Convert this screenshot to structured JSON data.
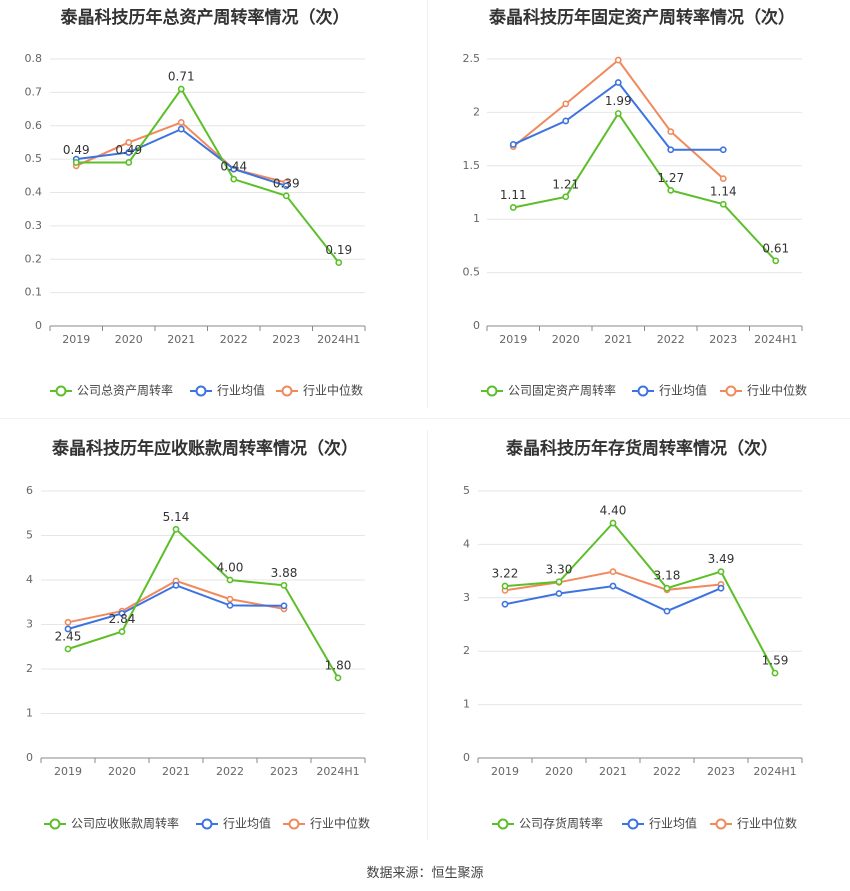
{
  "footer": "数据来源：恒生聚源",
  "colors": {
    "company": "#5cbf2a",
    "avg": "#3d73e0",
    "median": "#f08a5d"
  },
  "chart_data": [
    {
      "type": "line",
      "title": "泰晶科技历年总资产周转率情况（次）",
      "categories": [
        "2019",
        "2020",
        "2021",
        "2022",
        "2023",
        "2024H1"
      ],
      "ylim": [
        0,
        0.8
      ],
      "yticks": [
        "0",
        "0.1",
        "0.2",
        "0.3",
        "0.4",
        "0.5",
        "0.6",
        "0.7",
        "0.8"
      ],
      "series": [
        {
          "name": "公司总资产周转率",
          "values": [
            0.49,
            0.49,
            0.71,
            0.44,
            0.39,
            0.19
          ],
          "labels": [
            "0.49",
            "0.49",
            "0.71",
            "0.44",
            "0.39",
            "0.19"
          ]
        },
        {
          "name": "行业均值",
          "values": [
            0.5,
            0.52,
            0.59,
            0.47,
            0.42,
            null
          ]
        },
        {
          "name": "行业中位数",
          "values": [
            0.48,
            0.55,
            0.61,
            0.47,
            0.43,
            null
          ]
        }
      ],
      "grid": true,
      "legend": "bottom"
    },
    {
      "type": "line",
      "title": "泰晶科技历年固定资产周转率情况（次）",
      "categories": [
        "2019",
        "2020",
        "2021",
        "2022",
        "2023",
        "2024H1"
      ],
      "ylim": [
        0,
        2.5
      ],
      "yticks": [
        "0",
        "0.5",
        "1",
        "1.5",
        "2",
        "2.5"
      ],
      "series": [
        {
          "name": "公司固定资产周转率",
          "values": [
            1.11,
            1.21,
            1.99,
            1.27,
            1.14,
            0.61
          ],
          "labels": [
            "1.11",
            "1.21",
            "1.99",
            "1.27",
            "1.14",
            "0.61"
          ]
        },
        {
          "name": "行业均值",
          "values": [
            1.7,
            1.92,
            2.28,
            1.65,
            1.65,
            null
          ]
        },
        {
          "name": "行业中位数",
          "values": [
            1.68,
            2.08,
            2.49,
            1.82,
            1.38,
            null
          ]
        }
      ],
      "grid": true,
      "legend": "bottom"
    },
    {
      "type": "line",
      "title": "泰晶科技历年应收账款周转率情况（次）",
      "categories": [
        "2019",
        "2020",
        "2021",
        "2022",
        "2023",
        "2024H1"
      ],
      "ylim": [
        0,
        6
      ],
      "yticks": [
        "0",
        "1",
        "2",
        "3",
        "4",
        "5",
        "6"
      ],
      "series": [
        {
          "name": "公司应收账款周转率",
          "values": [
            2.45,
            2.84,
            5.14,
            4.0,
            3.88,
            1.8
          ],
          "labels": [
            "2.45",
            "2.84",
            "5.14",
            "4.00",
            "3.88",
            "1.80"
          ]
        },
        {
          "name": "行业均值",
          "values": [
            2.9,
            3.25,
            3.88,
            3.43,
            3.42,
            null
          ]
        },
        {
          "name": "行业中位数",
          "values": [
            3.05,
            3.3,
            3.98,
            3.57,
            3.35,
            null
          ]
        }
      ],
      "grid": true,
      "legend": "bottom"
    },
    {
      "type": "line",
      "title": "泰晶科技历年存货周转率情况（次）",
      "categories": [
        "2019",
        "2020",
        "2021",
        "2022",
        "2023",
        "2024H1"
      ],
      "ylim": [
        0,
        5
      ],
      "yticks": [
        "0",
        "1",
        "2",
        "3",
        "4",
        "5"
      ],
      "series": [
        {
          "name": "公司存货周转率",
          "values": [
            3.22,
            3.3,
            4.4,
            3.18,
            3.49,
            1.59
          ],
          "labels": [
            "3.22",
            "3.30",
            "4.40",
            "3.18",
            "3.49",
            "1.59"
          ]
        },
        {
          "name": "行业均值",
          "values": [
            2.88,
            3.08,
            3.22,
            2.75,
            3.18,
            null
          ]
        },
        {
          "name": "行业中位数",
          "values": [
            3.14,
            3.29,
            3.49,
            3.15,
            3.25,
            null
          ]
        }
      ],
      "grid": true,
      "legend": "bottom"
    }
  ]
}
